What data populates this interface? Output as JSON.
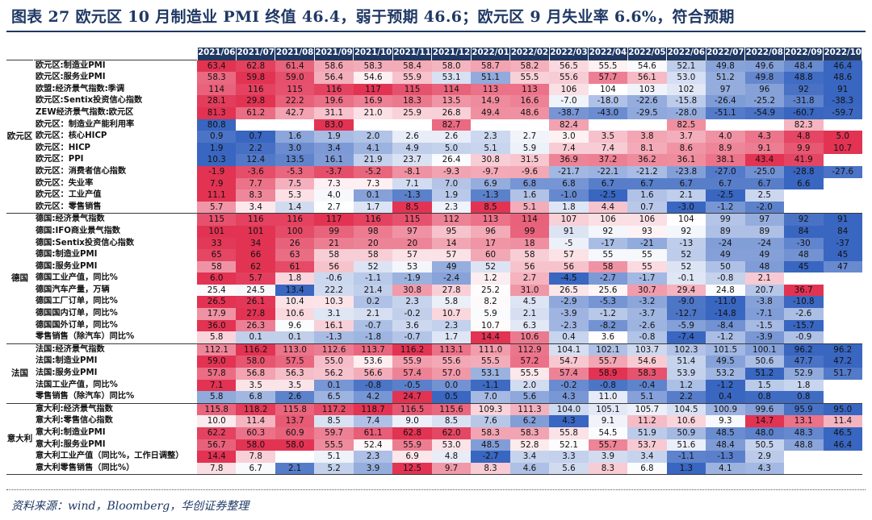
{
  "title": "图表 27  欧元区 10 月制造业 PMI 终值 46.4，弱于预期 46.6；欧元区 9 月失业率 6.6%，符合预期",
  "source": "资料来源：wind，Bloomberg，华创证券整理",
  "colors": {
    "header": "#1f3864",
    "high": "#e0284a",
    "low": "#2f5ebd",
    "neutral": "#ffffff"
  },
  "months": [
    "2021/06",
    "2021/07",
    "2021/08",
    "2021/09",
    "2021/10",
    "2021/11",
    "2021/12",
    "2022/01",
    "2022/02",
    "2022/03",
    "2022/04",
    "2022/05",
    "2022/06",
    "2022/07",
    "2022/08",
    "2022/09",
    "2022/10"
  ],
  "groups": [
    {
      "region": "欧元区",
      "rows": [
        {
          "label": "欧元区:制造业PMI",
          "values": [
            "63.4",
            "62.8",
            "61.4",
            "58.6",
            "58.3",
            "58.4",
            "58.0",
            "58.7",
            "58.2",
            "56.5",
            "55.5",
            "54.6",
            "52.1",
            "49.8",
            "49.6",
            "48.4",
            "46.4"
          ]
        },
        {
          "label": "欧元区:服务业PMI",
          "values": [
            "58.3",
            "59.8",
            "59.0",
            "56.4",
            "54.6",
            "55.9",
            "53.1",
            "51.1",
            "55.5",
            "55.6",
            "57.7",
            "56.1",
            "53.0",
            "51.2",
            "49.8",
            "48.8",
            "48.6"
          ]
        },
        {
          "label": "欧盟:经济景气指数:季调",
          "values": [
            "114",
            "116",
            "115",
            "116",
            "117",
            "115",
            "114",
            "113",
            "113",
            "106",
            "104",
            "103",
            "102",
            "97",
            "96",
            "92",
            "91"
          ]
        },
        {
          "label": "欧元区:Sentix投资信心指数",
          "values": [
            "28.1",
            "29.8",
            "22.2",
            "19.6",
            "16.9",
            "18.3",
            "13.5",
            "14.9",
            "16.6",
            "-7.0",
            "-18.0",
            "-22.6",
            "-15.8",
            "-26.4",
            "-25.2",
            "-31.8",
            "-38.3"
          ]
        },
        {
          "label": "ZEW经济景气指数:欧元区",
          "values": [
            "81.3",
            "61.2",
            "42.7",
            "31.1",
            "21.0",
            "25.9",
            "26.8",
            "49.4",
            "48.6",
            "-38.7",
            "-43.0",
            "-29.5",
            "-28.0",
            "-51.1",
            "-54.9",
            "-60.7",
            "-59.7"
          ]
        },
        {
          "label": "欧元区：制造业产能利用率",
          "values": [
            "80.8",
            "",
            "",
            "83.0",
            "",
            "",
            "82.7",
            "",
            "",
            "82.4",
            "",
            "",
            "82.5",
            "",
            "",
            "82.3",
            ""
          ]
        },
        {
          "label": "欧元区：核心HICP",
          "values": [
            "0.9",
            "0.7",
            "1.6",
            "1.9",
            "2.0",
            "2.6",
            "2.6",
            "2.3",
            "2.7",
            "3.0",
            "3.5",
            "3.8",
            "3.7",
            "4.0",
            "4.3",
            "4.8",
            "5.0"
          ]
        },
        {
          "label": "欧元区：HICP",
          "values": [
            "1.9",
            "2.2",
            "3.0",
            "3.4",
            "4.1",
            "4.9",
            "5.0",
            "5.1",
            "5.9",
            "7.4",
            "7.4",
            "8.1",
            "8.6",
            "8.9",
            "9.1",
            "9.9",
            "10.7"
          ]
        },
        {
          "label": "欧元区：PPI",
          "values": [
            "10.3",
            "12.4",
            "13.5",
            "16.1",
            "21.9",
            "23.7",
            "26.4",
            "30.8",
            "31.5",
            "36.9",
            "37.2",
            "36.2",
            "36.1",
            "38.1",
            "43.4",
            "41.9",
            ""
          ]
        },
        {
          "label": "欧元区：消费者信心指数",
          "values": [
            "-1.9",
            "-3.6",
            "-5.3",
            "-3.7",
            "-5.2",
            "-8.1",
            "-9.3",
            "-9.7",
            "-9.6",
            "-21.7",
            "-22.1",
            "-21.2",
            "-23.8",
            "-27.0",
            "-25.0",
            "-28.8",
            "-27.6"
          ]
        },
        {
          "label": "欧元区：失业率",
          "values": [
            "7.9",
            "7.7",
            "7.5",
            "7.3",
            "7.3",
            "7.1",
            "7.0",
            "6.9",
            "6.8",
            "6.8",
            "6.7",
            "6.7",
            "6.7",
            "6.7",
            "6.7",
            "6.6",
            ""
          ]
        },
        {
          "label": "欧元区：工业产值",
          "values": [
            "11.1",
            "8.3",
            "5.3",
            "4.0",
            "0.1",
            "-1.3",
            "1.9",
            "-1.3",
            "1.6",
            "-1.0",
            "-2.5",
            "1.6",
            "2.1",
            "-2.5",
            "2.5",
            "",
            ""
          ]
        },
        {
          "label": "欧元区：零售销售",
          "values": [
            "5.7",
            "3.4",
            "1.4",
            "2.7",
            "1.7",
            "8.5",
            "2.3",
            "8.5",
            "5.1",
            "1.8",
            "4.4",
            "0.7",
            "-3.0",
            "-1.2",
            "-2.0",
            "",
            ""
          ]
        }
      ]
    },
    {
      "region": "德国",
      "rows": [
        {
          "label": "德国:经济景气指数",
          "values": [
            "115",
            "116",
            "116",
            "117",
            "116",
            "115",
            "112",
            "113",
            "114",
            "107",
            "106",
            "106",
            "104",
            "99",
            "97",
            "92",
            "91"
          ]
        },
        {
          "label": "德国:IFO商业景气指数",
          "values": [
            "101",
            "101",
            "100",
            "99",
            "98",
            "97",
            "95",
            "96",
            "99",
            "91",
            "92",
            "93",
            "92",
            "89",
            "89",
            "84",
            "84"
          ]
        },
        {
          "label": "德国:Sentix投资信心指数",
          "values": [
            "33",
            "34",
            "26",
            "21",
            "20",
            "20",
            "14",
            "17",
            "18",
            "-5",
            "-17",
            "-21",
            "-13",
            "-24",
            "-24",
            "-30",
            "-37"
          ]
        },
        {
          "label": "德国:制造业PMI",
          "values": [
            "65",
            "66",
            "63",
            "58",
            "58",
            "57",
            "57",
            "60",
            "58",
            "57",
            "55",
            "55",
            "52",
            "49",
            "49",
            "48",
            "45"
          ]
        },
        {
          "label": "德国:服务业PMI",
          "values": [
            "58",
            "62",
            "61",
            "56",
            "52",
            "53",
            "49",
            "52",
            "56",
            "56",
            "58",
            "55",
            "52",
            "50",
            "48",
            "45",
            "47"
          ]
        },
        {
          "label": "德国工业产值，同比%",
          "values": [
            "6.0",
            "5.7",
            "1.8",
            "-0.6",
            "-1.1",
            "-1.9",
            "-2.4",
            "1.2",
            "2.7",
            "-4.5",
            "-2.7",
            "-1.7",
            "-0.1",
            "-0.8",
            "2.1",
            "",
            ""
          ]
        },
        {
          "label": "德国汽车产量，万辆",
          "values": [
            "25.4",
            "24.5",
            "13.4",
            "22.2",
            "21.4",
            "30.8",
            "27.8",
            "25.2",
            "31.0",
            "26.5",
            "25.6",
            "30.7",
            "29.4",
            "24.8",
            "20.7",
            "36.7",
            ""
          ]
        },
        {
          "label": "德国工厂订单，同比%",
          "values": [
            "26.5",
            "26.1",
            "10.4",
            "10.3",
            "0.2",
            "2.3",
            "5.8",
            "8.2",
            "4.5",
            "-2.9",
            "-5.3",
            "-3.2",
            "-9.0",
            "-11.0",
            "-3.8",
            "-10.8",
            ""
          ]
        },
        {
          "label": "德国国内订单，同比%",
          "values": [
            "17.9",
            "27.8",
            "10.6",
            "3.1",
            "2.1",
            "-0.2",
            "10.7",
            "5.9",
            "2.1",
            "-3.9",
            "-1.2",
            "-3.7",
            "-12.7",
            "-14.8",
            "-7.1",
            "-2.6",
            ""
          ]
        },
        {
          "label": "德国国外订单，同比%",
          "values": [
            "36.0",
            "26.3",
            "9.6",
            "16.1",
            "-0.7",
            "3.6",
            "2.3",
            "10.7",
            "6.3",
            "-2.3",
            "-8.2",
            "-2.6",
            "-5.9",
            "-8.4",
            "-1.5",
            "-15.7",
            ""
          ]
        },
        {
          "label": "零售销售（除汽车）同比%",
          "values": [
            "5.8",
            "0.1",
            "0.1",
            "-1.3",
            "-1.8",
            "-0.7",
            "1.7",
            "14.4",
            "10.6",
            "0.4",
            "3.6",
            "-0.8",
            "-7.4",
            "-1.2",
            "-3.9",
            "-0.9",
            ""
          ]
        }
      ]
    },
    {
      "region": "法国",
      "rows": [
        {
          "label": "法国:经济景气指数",
          "values": [
            "112.1",
            "116.2",
            "113.0",
            "112.6",
            "113.7",
            "116.2",
            "113.1",
            "111.0",
            "112.9",
            "104.1",
            "102.1",
            "103.7",
            "102.3",
            "101.5",
            "100.1",
            "96.2",
            "96.2"
          ]
        },
        {
          "label": "法国:制造业PMI",
          "values": [
            "59.0",
            "58.0",
            "57.5",
            "55.0",
            "53.6",
            "55.9",
            "55.6",
            "55.5",
            "57.2",
            "54.7",
            "55.7",
            "54.6",
            "51.4",
            "49.5",
            "50.6",
            "47.7",
            "47.2"
          ]
        },
        {
          "label": "法国:服务业PMI",
          "values": [
            "57.8",
            "56.8",
            "56.3",
            "56.2",
            "56.6",
            "57.4",
            "57.0",
            "53.1",
            "55.5",
            "57.4",
            "58.9",
            "58.3",
            "53.9",
            "53.2",
            "51.2",
            "52.9",
            "51.7"
          ]
        },
        {
          "label": "法国工业产值，同比%",
          "values": [
            "7.1",
            "3.5",
            "3.5",
            "0.1",
            "-0.8",
            "-0.5",
            "0.0",
            "-1.1",
            "2.0",
            "-0.2",
            "-0.8",
            "-0.4",
            "1.2",
            "-1.2",
            "1.5",
            "1.8",
            ""
          ]
        },
        {
          "label": "零售销售（除汽车）同比%",
          "values": [
            "5.8",
            "6.8",
            "2.6",
            "6.5",
            "4.2",
            "24.7",
            "0.5",
            "7.0",
            "5.6",
            "4.3",
            "11.0",
            "5.1",
            "2.2",
            "0.4",
            "0.8",
            "0.8",
            ""
          ]
        }
      ]
    },
    {
      "region": "意大利",
      "rows": [
        {
          "label": "意大利:经济景气指数",
          "values": [
            "115.8",
            "118.2",
            "115.8",
            "117.2",
            "118.7",
            "116.5",
            "115.6",
            "109.3",
            "111.3",
            "104.0",
            "105.1",
            "105.7",
            "104.5",
            "100.9",
            "99.6",
            "95.9",
            "95.0"
          ]
        },
        {
          "label": "意大利:零售信心指数",
          "values": [
            "10.0",
            "11.4",
            "13.7",
            "8.5",
            "7.4",
            "9.0",
            "8.5",
            "7.6",
            "6.2",
            "4.3",
            "9.1",
            "11.2",
            "10.6",
            "9.3",
            "14.7",
            "13.1",
            "11.4"
          ]
        },
        {
          "label": "意大利:制造业PMI",
          "values": [
            "62.2",
            "60.3",
            "60.9",
            "59.7",
            "61.1",
            "62.8",
            "62.0",
            "58.3",
            "58.3",
            "55.8",
            "54.5",
            "51.9",
            "50.9",
            "48.5",
            "48.0",
            "48.3",
            "46.5"
          ]
        },
        {
          "label": "意大利:服务业PMI",
          "values": [
            "56.7",
            "58.0",
            "58.0",
            "55.5",
            "52.4",
            "55.9",
            "53.0",
            "48.5",
            "52.8",
            "52.1",
            "55.7",
            "53.7",
            "51.6",
            "48.4",
            "50.5",
            "48.8",
            "46.4"
          ]
        },
        {
          "label": "意大利工业产值（同比%，工作日调整）",
          "values": [
            "14.4",
            "7.8",
            "",
            "5.1",
            "2.3",
            "6.9",
            "4.8",
            "-2.7",
            "3.4",
            "3.3",
            "3.9",
            "3.4",
            "-1.1",
            "-1.3",
            "2.9",
            "",
            ""
          ]
        },
        {
          "label": "意大利零售销售（同比%）",
          "values": [
            "7.8",
            "6.7",
            "2.1",
            "5.2",
            "3.9",
            "12.5",
            "9.7",
            "8.3",
            "4.6",
            "5.6",
            "8.3",
            "6.8",
            "1.3",
            "4.1",
            "4.3",
            "",
            ""
          ]
        }
      ]
    }
  ]
}
